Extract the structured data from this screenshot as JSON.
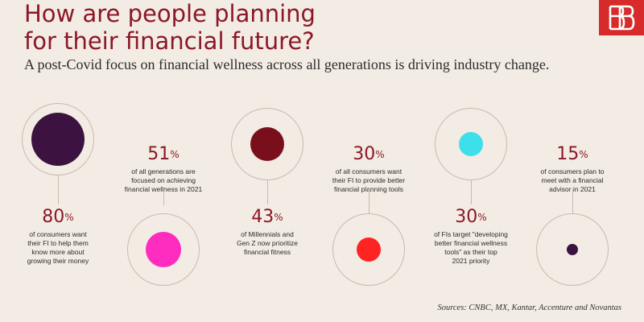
{
  "header": {
    "title_line1": "How are people planning",
    "title_line2": "for their financial future?",
    "subtitle": "A post-Covid focus on financial wellness across all generations is driving industry change."
  },
  "colors": {
    "title": "#8c1727",
    "dot_purple": "#3c1340",
    "dot_pink": "#ff2cc0",
    "dot_maroon": "#7a0f1c",
    "dot_red": "#ff2424",
    "dot_cyan": "#3de0ea",
    "dot_small": "#3c1340",
    "logo": "#d72b2b"
  },
  "stats": [
    {
      "value": "80",
      "unit": "%",
      "desc": [
        "of consumers want",
        "their FI to help them",
        "know more about",
        "growing their money"
      ]
    },
    {
      "value": "51",
      "unit": "%",
      "desc": [
        "of all generations are",
        "focused on achieving",
        "financial wellness in 2021"
      ]
    },
    {
      "value": "43",
      "unit": "%",
      "desc": [
        "of Millennials and",
        "Gen Z now prioritize",
        "financial fitness"
      ]
    },
    {
      "value": "30",
      "unit": "%",
      "desc": [
        "of all consumers want",
        "their FI to provide better",
        "financial planning tools"
      ]
    },
    {
      "value": "30",
      "unit": "%",
      "desc": [
        "of FIs target \"developing",
        "better financial wellness",
        "tools\" as their top",
        "2021 priority"
      ]
    },
    {
      "value": "15",
      "unit": "%",
      "desc": [
        "of consumers plan to",
        "meet with a financial",
        "advisor in 2021"
      ]
    }
  ],
  "sources": "Sources:  CNBC, MX, Kantar, Accenture and Novantas"
}
